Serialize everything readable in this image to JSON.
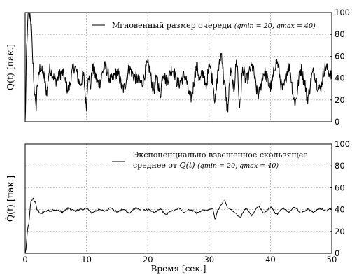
{
  "chart_data": [
    {
      "type": "line",
      "ylabel": "Q(t) [пак.]",
      "xlabel": "",
      "xlim": [
        0,
        50
      ],
      "ylim": [
        0,
        100
      ],
      "x_ticks": [],
      "y_ticks": [
        "0",
        "20",
        "40",
        "60",
        "80",
        "100"
      ],
      "grid": true,
      "legend_position": "top-right",
      "series": [
        {
          "name": "Мгновенный размер очереди (q_min = 20, q_max = 40)",
          "legend_main": "Мгновенный размер очереди ",
          "legend_params": "(qmin = 20,  qmax = 40)",
          "x": [
            0,
            0.25,
            0.5,
            0.75,
            1.0,
            1.25,
            1.5,
            1.75,
            2.0,
            2.5,
            3.0,
            3.5,
            4.0,
            5.0,
            6.0,
            7.0,
            8.0,
            9.0,
            9.5,
            10.0,
            10.3,
            10.6,
            11.0,
            12.0,
            13.0,
            14.0,
            15.0,
            16.0,
            17.0,
            18.0,
            19.0,
            20.0,
            21.0,
            21.5,
            22.0,
            22.5,
            23.0,
            24.0,
            25.0,
            26.0,
            27.0,
            28.0,
            28.5,
            29.0,
            29.5,
            30.0,
            30.5,
            31.0,
            31.5,
            32.0,
            32.5,
            33.0,
            33.5,
            34.0,
            34.5,
            35.0,
            35.5,
            36.0,
            37.0,
            38.0,
            39.0,
            40.0,
            41.0,
            42.0,
            43.0,
            44.0,
            45.0,
            45.5,
            46.0,
            47.0,
            48.0,
            49.0,
            50.0
          ],
          "values": [
            0,
            70,
            100,
            95,
            85,
            55,
            30,
            12,
            35,
            50,
            42,
            28,
            48,
            38,
            45,
            30,
            50,
            35,
            42,
            15,
            45,
            32,
            48,
            35,
            50,
            38,
            45,
            30,
            48,
            40,
            35,
            52,
            30,
            40,
            25,
            45,
            38,
            48,
            35,
            42,
            22,
            50,
            38,
            45,
            30,
            55,
            40,
            20,
            48,
            62,
            35,
            12,
            45,
            30,
            55,
            15,
            48,
            38,
            50,
            25,
            45,
            32,
            55,
            30,
            50,
            18,
            48,
            38,
            22,
            45,
            30,
            50,
            42
          ]
        }
      ]
    },
    {
      "type": "line",
      "ylabel": "Q̂(t) [пак.]",
      "xlabel": "Время [сек.]",
      "xlim": [
        0,
        50
      ],
      "ylim": [
        0,
        100
      ],
      "x_ticks": [
        "0",
        "10",
        "20",
        "30",
        "40",
        "50"
      ],
      "y_ticks": [
        "0",
        "20",
        "40",
        "60",
        "80",
        "100"
      ],
      "grid": true,
      "legend_position": "top-right",
      "series": [
        {
          "name": "Экспоненциально взвешенное скользящее среднее от Q(t) (q_min = 20, q_max = 40)",
          "legend_line1": "Экспоненциально взвешенное скользящее",
          "legend_line2_main": "среднее от ",
          "legend_line2_q": "Q(t)",
          "legend_line2_params": " (qmin = 20,  qmax = 40)",
          "x": [
            0,
            0.5,
            1.0,
            1.3,
            1.6,
            2.0,
            2.5,
            3.0,
            4.0,
            5.0,
            6.0,
            7.0,
            8.0,
            9.0,
            10.0,
            11.0,
            12.0,
            13.0,
            14.0,
            15.0,
            16.0,
            17.0,
            18.0,
            19.0,
            20.0,
            21.0,
            22.0,
            23.0,
            24.0,
            25.0,
            26.0,
            27.0,
            28.0,
            29.0,
            30.0,
            30.5,
            31.0,
            31.5,
            32.0,
            32.5,
            33.0,
            34.0,
            35.0,
            36.0,
            37.0,
            38.0,
            39.0,
            40.0,
            41.0,
            42.0,
            43.0,
            44.0,
            45.0,
            46.0,
            47.0,
            48.0,
            49.0,
            50.0
          ],
          "values": [
            0,
            25,
            48,
            50,
            47,
            40,
            36,
            38,
            39,
            40,
            38,
            41,
            39,
            40,
            41,
            37,
            40,
            39,
            41,
            38,
            40,
            37,
            41,
            39,
            40,
            38,
            40,
            36,
            39,
            41,
            38,
            40,
            37,
            39,
            40,
            41,
            32,
            40,
            45,
            48,
            42,
            38,
            33,
            41,
            35,
            43,
            37,
            42,
            36,
            41,
            38,
            42,
            37,
            40,
            38,
            41,
            39,
            41
          ]
        }
      ]
    }
  ]
}
